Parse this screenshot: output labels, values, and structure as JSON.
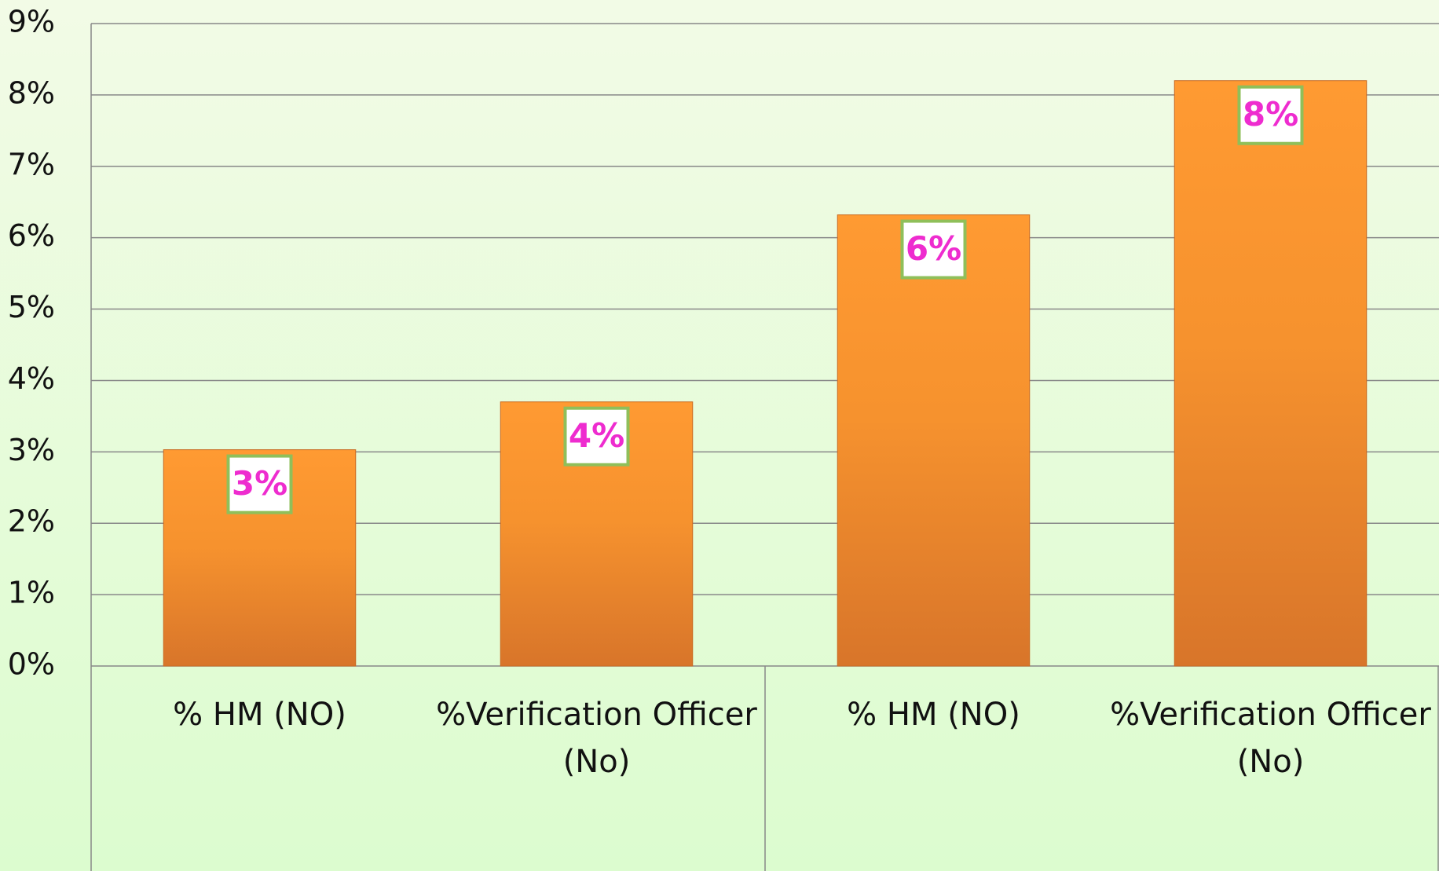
{
  "chart_data": {
    "type": "bar",
    "categories": [
      "% HM (NO)",
      "%Verification Officer (No)",
      "% HM (NO)",
      "%Verification Officer (No)"
    ],
    "values": [
      3.03,
      3.7,
      6.32,
      8.2
    ],
    "value_labels": [
      "3%",
      "4%",
      "6%",
      "8%"
    ],
    "color": "#f7902c",
    "ylim": [
      0,
      9
    ],
    "yticks": [
      {
        "value": 0,
        "label": "0%"
      },
      {
        "value": 1,
        "label": "1%"
      },
      {
        "value": 2,
        "label": "2%"
      },
      {
        "value": 3,
        "label": "3%"
      },
      {
        "value": 4,
        "label": "4%"
      },
      {
        "value": 5,
        "label": "5%"
      },
      {
        "value": 6,
        "label": "6%"
      },
      {
        "value": 7,
        "label": "7%"
      },
      {
        "value": 8,
        "label": "8%"
      },
      {
        "value": 9,
        "label": "9%"
      }
    ],
    "grid": true
  }
}
